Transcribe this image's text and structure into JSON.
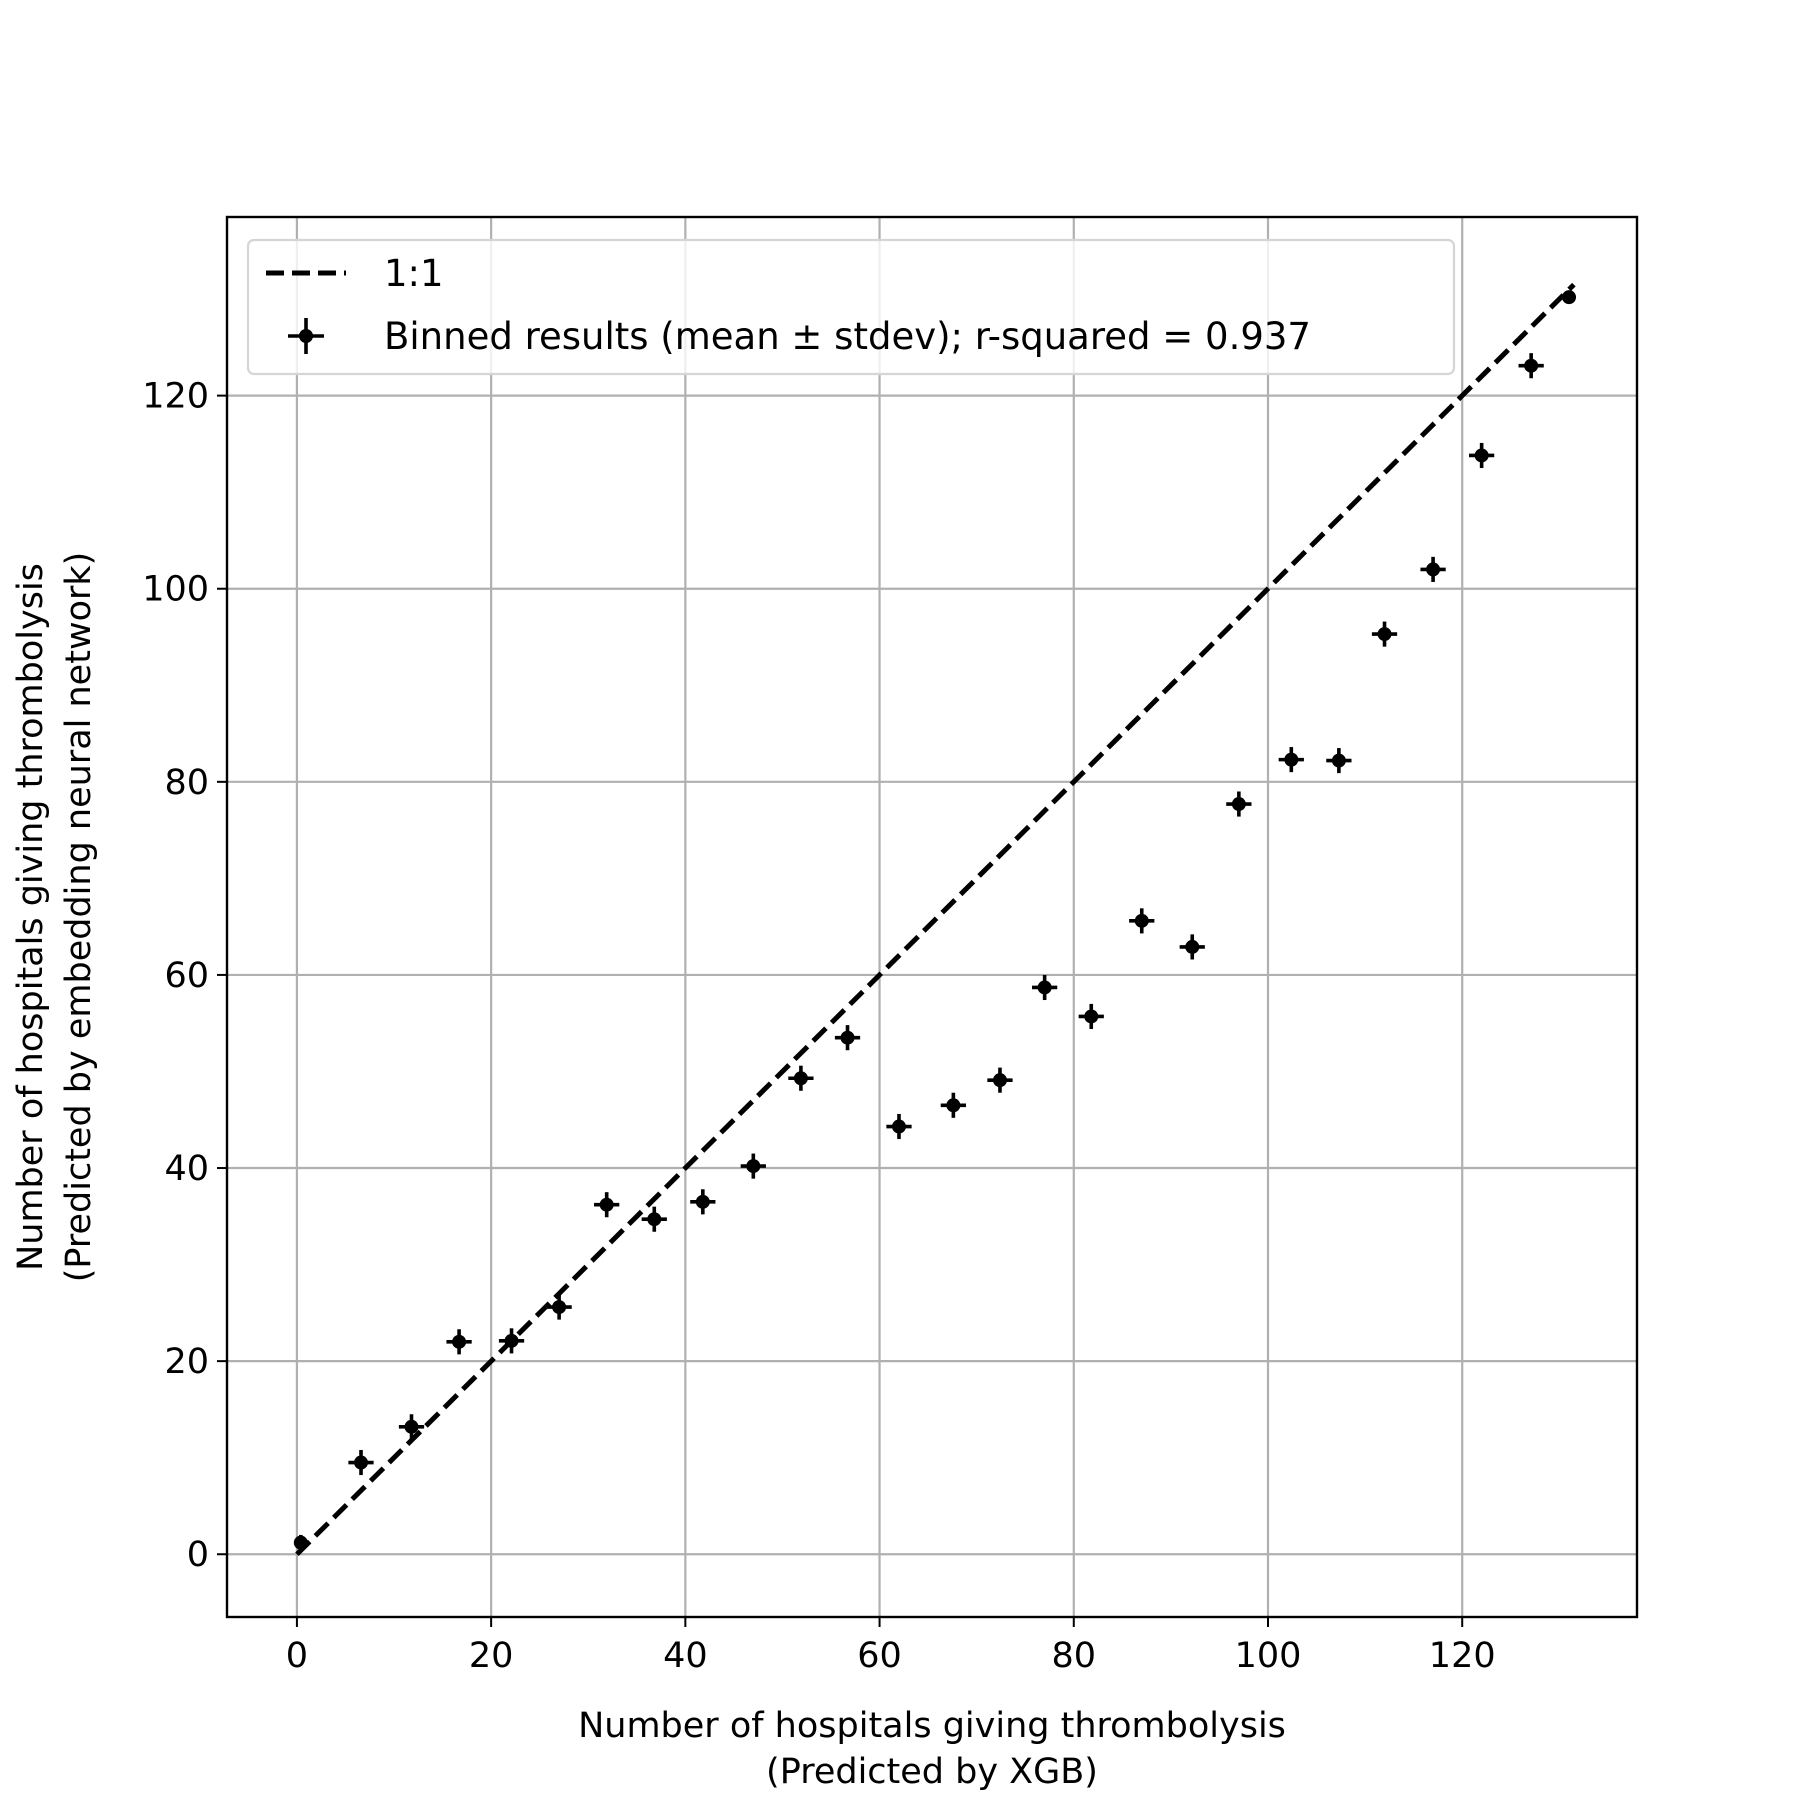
{
  "chart_data": {
    "type": "scatter",
    "xlabel": [
      "Number of hospitals giving thrombolysis",
      "(Predicted by XGB)"
    ],
    "ylabel": [
      "Number of hospitals giving thrombolysis",
      "(Predicted by embedding neural network)"
    ],
    "xlim": [
      -7.2,
      138
    ],
    "ylim": [
      -6.5,
      138.5
    ],
    "xticks": [
      0,
      20,
      40,
      60,
      80,
      100,
      120
    ],
    "yticks": [
      0,
      20,
      40,
      60,
      80,
      100,
      120
    ],
    "grid": true,
    "legend_position": "top-left",
    "legend": {
      "reference_label": "1:1",
      "series_label": "Binned results (mean ± stdev); r-squared = 0.937"
    },
    "reference_line": {
      "x": [
        0,
        131.5
      ],
      "y": [
        0,
        131.5
      ]
    },
    "series": [
      {
        "name": "Binned results (mean ± stdev); r-squared = 0.937",
        "x": [
          0.4,
          6.6,
          11.8,
          16.7,
          22.1,
          27.0,
          31.9,
          36.8,
          41.8,
          47.0,
          51.9,
          56.7,
          62.0,
          67.6,
          72.4,
          77.0,
          81.8,
          87.0,
          92.2,
          97.0,
          102.4,
          107.3,
          112.0,
          117.0,
          122.0,
          127.1,
          131.0
        ],
        "y": [
          1.2,
          9.5,
          13.2,
          22.0,
          22.1,
          25.6,
          36.2,
          34.7,
          36.5,
          40.2,
          49.3,
          53.5,
          44.3,
          46.5,
          49.1,
          58.7,
          55.7,
          65.6,
          62.9,
          77.7,
          82.3,
          82.2,
          95.3,
          102.0,
          113.8,
          123.1,
          130.2
        ],
        "xerr": [
          0,
          1.3,
          1.3,
          1.3,
          1.3,
          1.3,
          1.3,
          1.3,
          1.3,
          1.3,
          1.3,
          1.3,
          1.3,
          1.3,
          1.3,
          1.3,
          1.3,
          1.3,
          1.3,
          1.3,
          1.3,
          1.3,
          1.3,
          1.3,
          1.3,
          1.3,
          0
        ],
        "yerr": [
          0.8,
          1.3,
          1.3,
          1.3,
          1.3,
          1.3,
          1.3,
          1.3,
          1.3,
          1.3,
          1.3,
          1.3,
          1.3,
          1.3,
          1.3,
          1.3,
          1.3,
          1.3,
          1.3,
          1.3,
          1.3,
          1.3,
          1.3,
          1.3,
          1.3,
          1.3,
          0
        ]
      }
    ]
  }
}
